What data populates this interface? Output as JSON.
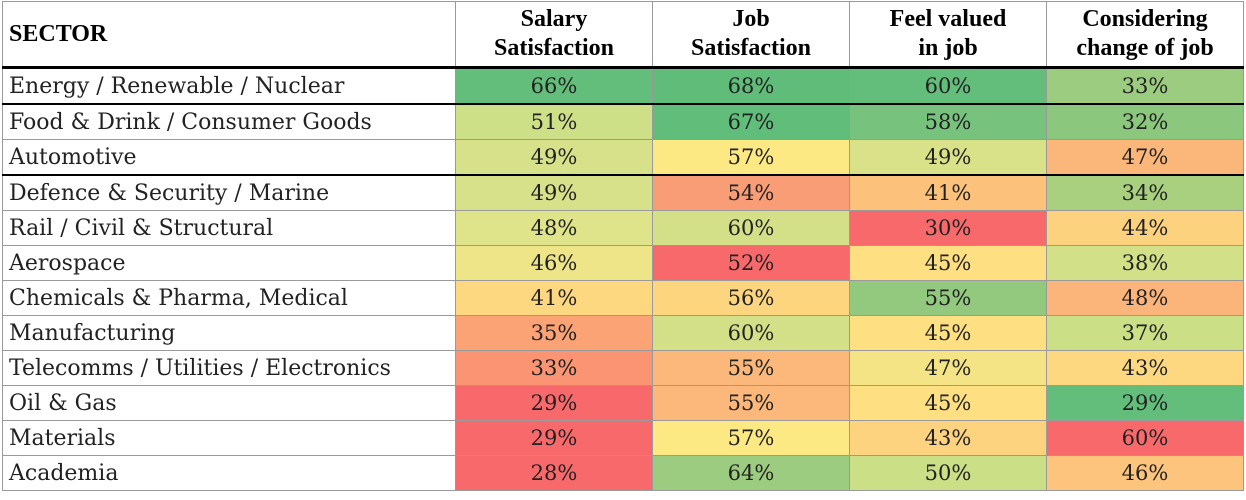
{
  "chart_data": {
    "type": "heatmap",
    "columns": [
      {
        "line1": "SECTOR",
        "line2": ""
      },
      {
        "line1": "Salary",
        "line2": "Satisfaction"
      },
      {
        "line1": "Job",
        "line2": "Satisfaction"
      },
      {
        "line1": "Feel valued",
        "line2": "in job"
      },
      {
        "line1": "Considering",
        "line2": "change of job"
      }
    ],
    "rows": [
      {
        "sector": "Energy / Renewable / Nuclear",
        "values": [
          66,
          68,
          60,
          33
        ],
        "colors": [
          "#63be7b",
          "#5fbc79",
          "#63be7b",
          "#9ccc7f"
        ]
      },
      {
        "sector": "Food & Drink / Consumer Goods",
        "values": [
          51,
          67,
          58,
          32
        ],
        "colors": [
          "#cde088",
          "#60bd7a",
          "#77c27d",
          "#8cc77e"
        ]
      },
      {
        "sector": "Automotive",
        "values": [
          49,
          57,
          49,
          47
        ],
        "colors": [
          "#d7e189",
          "#fde984",
          "#d9e289",
          "#fbb67a"
        ]
      },
      {
        "sector": "Defence & Security / Marine",
        "values": [
          49,
          54,
          41,
          34
        ],
        "colors": [
          "#d7e189",
          "#f99d76",
          "#fcc27b",
          "#a8d07f"
        ]
      },
      {
        "sector": "Rail / Civil & Structural",
        "values": [
          48,
          60,
          30,
          44
        ],
        "colors": [
          "#dfe389",
          "#d4e088",
          "#f8696b",
          "#fdd27f"
        ]
      },
      {
        "sector": "Aerospace",
        "values": [
          46,
          52,
          45,
          38
        ],
        "colors": [
          "#ede588",
          "#f8696b",
          "#fee082",
          "#d2e088"
        ]
      },
      {
        "sector": "Chemicals & Pharma, Medical",
        "values": [
          41,
          56,
          55,
          48
        ],
        "colors": [
          "#fed781",
          "#fdd57f",
          "#92c97e",
          "#fbb57a"
        ]
      },
      {
        "sector": "Manufacturing",
        "values": [
          35,
          60,
          45,
          37
        ],
        "colors": [
          "#fba375",
          "#d4e088",
          "#fee082",
          "#cbdf86"
        ]
      },
      {
        "sector": "Telecomms / Utilities / Electronics",
        "values": [
          33,
          55,
          47,
          43
        ],
        "colors": [
          "#fa9473",
          "#fbb87a",
          "#f4e486",
          "#fdd880"
        ]
      },
      {
        "sector": "Oil & Gas",
        "values": [
          29,
          55,
          45,
          29
        ],
        "colors": [
          "#f8696b",
          "#fbb87a",
          "#fee082",
          "#63be7b"
        ]
      },
      {
        "sector": "Materials",
        "values": [
          29,
          57,
          43,
          60
        ],
        "colors": [
          "#f8696b",
          "#fde984",
          "#fed380",
          "#f8696b"
        ]
      },
      {
        "sector": "Academia",
        "values": [
          28,
          64,
          50,
          46
        ],
        "colors": [
          "#f8696b",
          "#9ccc7f",
          "#cbdf86",
          "#fcc47d"
        ]
      }
    ]
  }
}
